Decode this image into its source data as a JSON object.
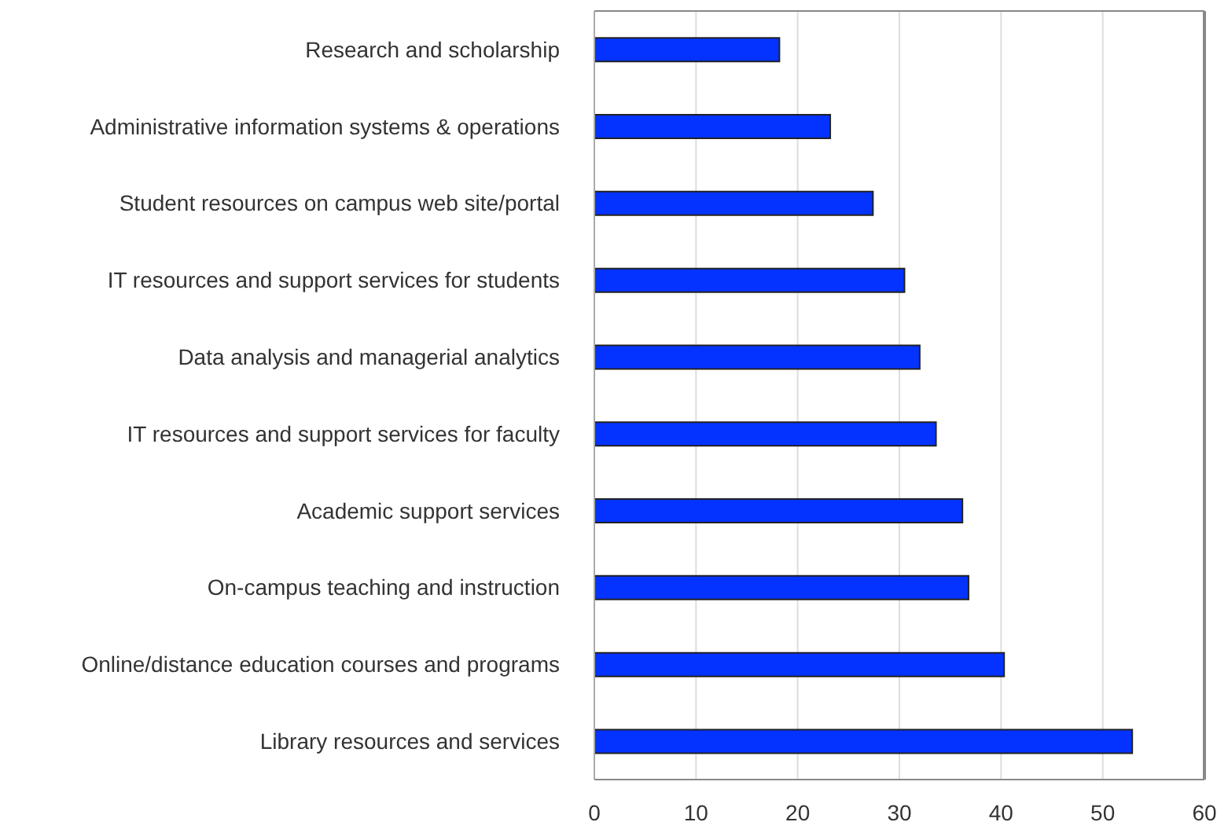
{
  "chart_data": {
    "type": "bar",
    "orientation": "horizontal",
    "categories": [
      "Research and scholarship",
      "Administrative information systems & operations",
      "Student resources on campus web site/portal",
      "IT resources and support services for students",
      "Data analysis and managerial analytics",
      "IT resources and support services for faculty",
      "Academic support services ",
      "On-campus teaching and instruction",
      "Online/distance education courses and programs",
      "Library resources and services"
    ],
    "values": [
      18.2,
      23.2,
      27.4,
      30.5,
      32.0,
      33.6,
      36.2,
      36.8,
      40.3,
      52.9
    ],
    "color": "#0433ff",
    "xlim": [
      0,
      60
    ],
    "xticks": [
      0,
      10,
      20,
      30,
      40,
      50,
      60
    ],
    "grid": "x"
  }
}
